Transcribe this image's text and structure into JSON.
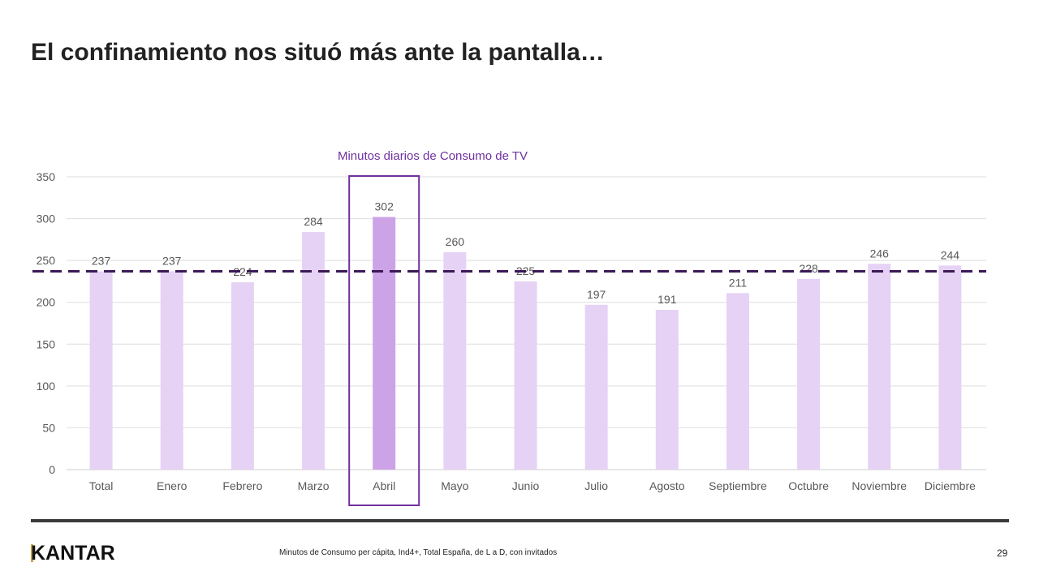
{
  "title": "El confinamiento nos situó más ante la pantalla…",
  "footer": {
    "logo": "KANTAR",
    "note": "Minutos de Consumo per cápita, Ind4+, Total España, de L a D, con invitados",
    "page_number": "29"
  },
  "chart_data": {
    "type": "bar",
    "title": "Minutos  diarios de Consumo  de TV",
    "categories": [
      "Total",
      "Enero",
      "Febrero",
      "Marzo",
      "Abril",
      "Mayo",
      "Junio",
      "Julio",
      "Agosto",
      "Septiembre",
      "Octubre",
      "Noviembre",
      "Diciembre"
    ],
    "values": [
      237,
      237,
      224,
      284,
      302,
      260,
      225,
      197,
      191,
      211,
      228,
      246,
      244
    ],
    "ylim": [
      0,
      350
    ],
    "yticks": [
      0,
      50,
      100,
      150,
      200,
      250,
      300,
      350
    ],
    "grid": true,
    "reference_line": {
      "value": 237,
      "style": "dashed",
      "color": "#3b1a55"
    },
    "highlight": {
      "category": "Abril",
      "bar_color": "#cda3e8",
      "box_color": "#7030a0"
    },
    "bar_color": "#e6d2f5",
    "title_color": "#7030a0"
  }
}
